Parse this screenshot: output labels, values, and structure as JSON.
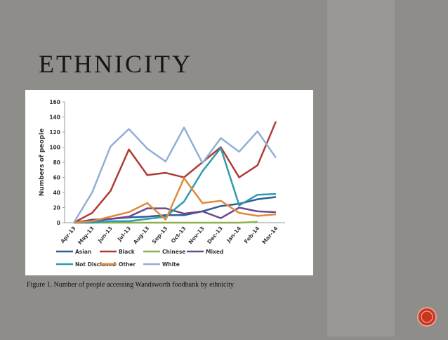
{
  "slide_title": "ETHNICITY",
  "caption": "Figure 1. Number of people accessing Wandsworth foodbank by ethnicity",
  "chart_data": {
    "type": "line",
    "ylabel": "Numbers of people",
    "categories": [
      "Apr-13",
      "May-13",
      "Jun-13",
      "Jul-13",
      "Aug-13",
      "Sep-13",
      "Oct-13",
      "Nov-13",
      "Dec-13",
      "Jan-14",
      "Feb-14",
      "Mar-14"
    ],
    "ylim": [
      0,
      160
    ],
    "yticks": [
      0,
      20,
      40,
      60,
      80,
      100,
      120,
      140,
      160
    ],
    "series": [
      {
        "name": "Asian",
        "color": "#2f5d9a",
        "values": [
          0,
          2,
          5,
          7,
          8,
          10,
          10,
          15,
          22,
          25,
          31,
          34
        ]
      },
      {
        "name": "Black",
        "color": "#b03a35",
        "values": [
          0,
          13,
          42,
          97,
          63,
          66,
          60,
          80,
          100,
          60,
          76,
          134
        ]
      },
      {
        "name": "Chinese",
        "color": "#8fb04a",
        "values": [
          0,
          0,
          0,
          0,
          0,
          0,
          0,
          0,
          0,
          0,
          1,
          null
        ]
      },
      {
        "name": "Mixed",
        "color": "#6b4a8c",
        "values": [
          0,
          4,
          5,
          8,
          19,
          19,
          12,
          15,
          6,
          20,
          15,
          14
        ]
      },
      {
        "name": "Not Disclosed",
        "color": "#2f9bae",
        "values": [
          0,
          0,
          2,
          2,
          5,
          8,
          28,
          68,
          99,
          23,
          37,
          38
        ]
      },
      {
        "name": "Other",
        "color": "#e08a3a",
        "values": [
          0,
          2,
          8,
          14,
          26,
          4,
          59,
          26,
          29,
          13,
          9,
          11
        ]
      },
      {
        "name": "White",
        "color": "#93aed6",
        "values": [
          0,
          40,
          101,
          124,
          98,
          81,
          126,
          79,
          112,
          94,
          121,
          86
        ]
      }
    ]
  }
}
